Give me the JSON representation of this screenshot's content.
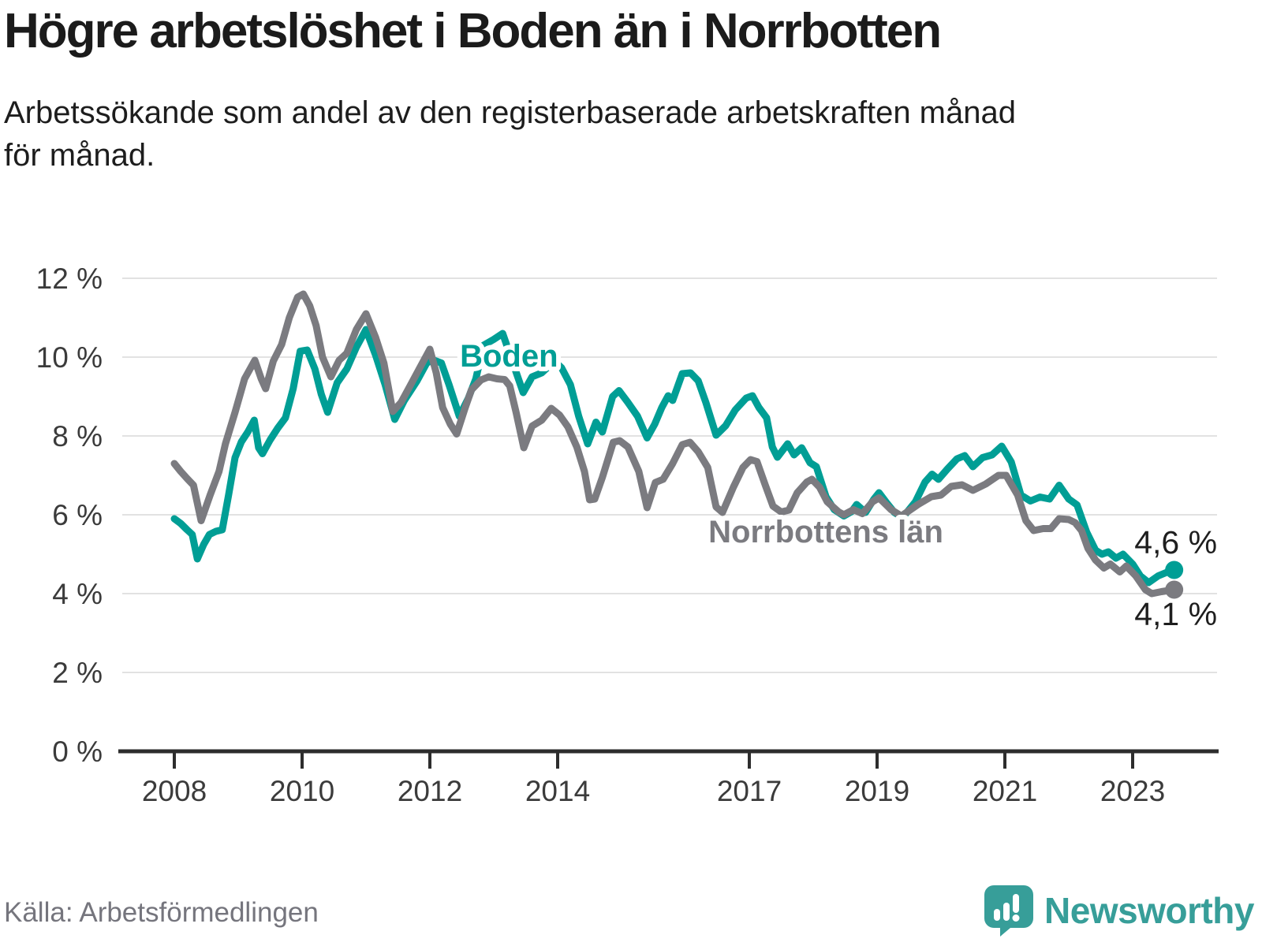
{
  "title": "Högre arbetslöshet i Boden än i Norrbotten",
  "subtitle_lines": [
    "Arbetssökande som andel av den registerbaserade arbetskraften månad",
    "för månad."
  ],
  "source": "Källa: Arbetsförmedlingen",
  "branding": {
    "name": "Newsworthy",
    "color": "#379e99"
  },
  "colors": {
    "grid": "#e2e2e2",
    "axis": "#2d2d2d",
    "tick_text": "#3b3b3b",
    "value_label_text": "#1e1e1e"
  },
  "chart_data": {
    "type": "line",
    "unit": "%",
    "x_axis": {
      "range": [
        2008.0,
        2023.65
      ],
      "ticks": [
        {
          "v": 2008,
          "label": "2008"
        },
        {
          "v": 2010,
          "label": "2010"
        },
        {
          "v": 2012,
          "label": "2012"
        },
        {
          "v": 2014,
          "label": "2014"
        },
        {
          "v": 2017,
          "label": "2017"
        },
        {
          "v": 2019,
          "label": "2019"
        },
        {
          "v": 2021,
          "label": "2021"
        },
        {
          "v": 2023,
          "label": "2023"
        }
      ]
    },
    "y_axis": {
      "range": [
        0,
        12
      ],
      "ticks": [
        {
          "v": 0,
          "label": "0 %"
        },
        {
          "v": 2,
          "label": "2 %"
        },
        {
          "v": 4,
          "label": "4 %"
        },
        {
          "v": 6,
          "label": "6 %"
        },
        {
          "v": 8,
          "label": "8 %"
        },
        {
          "v": 10,
          "label": "10 %"
        },
        {
          "v": 12,
          "label": "12 %"
        }
      ]
    },
    "series": [
      {
        "id": "boden",
        "name": "Boden",
        "color": "#009e95",
        "end_label": "4,6 %",
        "end_value": 4.6,
        "end_label_position": "above",
        "inline_label": {
          "x": 2012.47,
          "y": 9.76
        },
        "points": [
          [
            2008.0,
            5.9
          ],
          [
            2008.1,
            5.78
          ],
          [
            2008.2,
            5.62
          ],
          [
            2008.28,
            5.5
          ],
          [
            2008.36,
            4.88
          ],
          [
            2008.46,
            5.25
          ],
          [
            2008.55,
            5.5
          ],
          [
            2008.65,
            5.58
          ],
          [
            2008.75,
            5.62
          ],
          [
            2008.85,
            6.5
          ],
          [
            2008.95,
            7.45
          ],
          [
            2009.05,
            7.85
          ],
          [
            2009.15,
            8.1
          ],
          [
            2009.25,
            8.4
          ],
          [
            2009.32,
            7.7
          ],
          [
            2009.38,
            7.55
          ],
          [
            2009.5,
            7.9
          ],
          [
            2009.62,
            8.2
          ],
          [
            2009.74,
            8.46
          ],
          [
            2009.86,
            9.2
          ],
          [
            2009.97,
            10.15
          ],
          [
            2010.08,
            10.18
          ],
          [
            2010.2,
            9.7
          ],
          [
            2010.3,
            9.06
          ],
          [
            2010.4,
            8.6
          ],
          [
            2010.55,
            9.35
          ],
          [
            2010.7,
            9.7
          ],
          [
            2010.85,
            10.25
          ],
          [
            2011.0,
            10.7
          ],
          [
            2011.15,
            10.05
          ],
          [
            2011.3,
            9.3
          ],
          [
            2011.45,
            8.42
          ],
          [
            2011.6,
            8.9
          ],
          [
            2011.8,
            9.4
          ],
          [
            2011.95,
            9.85
          ],
          [
            2012.05,
            9.93
          ],
          [
            2012.18,
            9.85
          ],
          [
            2012.3,
            9.3
          ],
          [
            2012.46,
            8.5
          ],
          [
            2012.6,
            8.95
          ],
          [
            2012.72,
            9.45
          ],
          [
            2012.84,
            10.3
          ],
          [
            2013.0,
            10.45
          ],
          [
            2013.14,
            10.6
          ],
          [
            2013.3,
            9.85
          ],
          [
            2013.46,
            9.1
          ],
          [
            2013.6,
            9.5
          ],
          [
            2013.75,
            9.6
          ],
          [
            2013.95,
            9.9
          ],
          [
            2014.06,
            9.73
          ],
          [
            2014.2,
            9.3
          ],
          [
            2014.33,
            8.5
          ],
          [
            2014.47,
            7.8
          ],
          [
            2014.6,
            8.35
          ],
          [
            2014.7,
            8.1
          ],
          [
            2014.86,
            9.0
          ],
          [
            2014.96,
            9.15
          ],
          [
            2015.1,
            8.85
          ],
          [
            2015.25,
            8.5
          ],
          [
            2015.4,
            7.95
          ],
          [
            2015.52,
            8.3
          ],
          [
            2015.63,
            8.72
          ],
          [
            2015.73,
            9.02
          ],
          [
            2015.8,
            8.9
          ],
          [
            2015.95,
            9.58
          ],
          [
            2016.08,
            9.6
          ],
          [
            2016.2,
            9.4
          ],
          [
            2016.32,
            8.85
          ],
          [
            2016.48,
            8.02
          ],
          [
            2016.63,
            8.26
          ],
          [
            2016.78,
            8.66
          ],
          [
            2016.95,
            8.96
          ],
          [
            2017.05,
            9.02
          ],
          [
            2017.15,
            8.72
          ],
          [
            2017.27,
            8.46
          ],
          [
            2017.36,
            7.72
          ],
          [
            2017.44,
            7.46
          ],
          [
            2017.6,
            7.8
          ],
          [
            2017.7,
            7.52
          ],
          [
            2017.82,
            7.7
          ],
          [
            2017.95,
            7.32
          ],
          [
            2018.05,
            7.22
          ],
          [
            2018.2,
            6.46
          ],
          [
            2018.33,
            6.13
          ],
          [
            2018.48,
            5.97
          ],
          [
            2018.6,
            6.08
          ],
          [
            2018.68,
            6.26
          ],
          [
            2018.82,
            6.06
          ],
          [
            2018.95,
            6.4
          ],
          [
            2019.03,
            6.56
          ],
          [
            2019.15,
            6.3
          ],
          [
            2019.27,
            6.06
          ],
          [
            2019.4,
            5.93
          ],
          [
            2019.6,
            6.33
          ],
          [
            2019.75,
            6.83
          ],
          [
            2019.86,
            7.03
          ],
          [
            2019.96,
            6.9
          ],
          [
            2020.1,
            7.16
          ],
          [
            2020.25,
            7.42
          ],
          [
            2020.37,
            7.5
          ],
          [
            2020.5,
            7.22
          ],
          [
            2020.65,
            7.45
          ],
          [
            2020.8,
            7.52
          ],
          [
            2020.95,
            7.74
          ],
          [
            2021.1,
            7.34
          ],
          [
            2021.25,
            6.5
          ],
          [
            2021.4,
            6.35
          ],
          [
            2021.55,
            6.45
          ],
          [
            2021.7,
            6.4
          ],
          [
            2021.85,
            6.75
          ],
          [
            2022.0,
            6.4
          ],
          [
            2022.13,
            6.25
          ],
          [
            2022.28,
            5.56
          ],
          [
            2022.42,
            5.1
          ],
          [
            2022.52,
            5.0
          ],
          [
            2022.62,
            5.06
          ],
          [
            2022.74,
            4.9
          ],
          [
            2022.85,
            5.0
          ],
          [
            2023.0,
            4.75
          ],
          [
            2023.12,
            4.45
          ],
          [
            2023.25,
            4.28
          ],
          [
            2023.4,
            4.45
          ],
          [
            2023.55,
            4.55
          ],
          [
            2023.65,
            4.6
          ]
        ]
      },
      {
        "id": "norrbottens-lan",
        "name": "Norrbottens län",
        "color": "#7b7b80",
        "end_label": "4,1 %",
        "end_value": 4.1,
        "end_label_position": "below",
        "inline_label": {
          "x": 2016.36,
          "y": 5.3
        },
        "points": [
          [
            2008.0,
            7.3
          ],
          [
            2008.1,
            7.1
          ],
          [
            2008.2,
            6.92
          ],
          [
            2008.3,
            6.75
          ],
          [
            2008.42,
            5.85
          ],
          [
            2008.56,
            6.5
          ],
          [
            2008.7,
            7.1
          ],
          [
            2008.8,
            7.8
          ],
          [
            2008.95,
            8.6
          ],
          [
            2009.1,
            9.45
          ],
          [
            2009.26,
            9.92
          ],
          [
            2009.36,
            9.45
          ],
          [
            2009.43,
            9.2
          ],
          [
            2009.55,
            9.9
          ],
          [
            2009.68,
            10.32
          ],
          [
            2009.8,
            11.0
          ],
          [
            2009.93,
            11.52
          ],
          [
            2010.02,
            11.6
          ],
          [
            2010.12,
            11.3
          ],
          [
            2010.22,
            10.8
          ],
          [
            2010.32,
            10.0
          ],
          [
            2010.45,
            9.5
          ],
          [
            2010.58,
            9.92
          ],
          [
            2010.7,
            10.1
          ],
          [
            2010.85,
            10.7
          ],
          [
            2011.0,
            11.1
          ],
          [
            2011.15,
            10.5
          ],
          [
            2011.28,
            9.85
          ],
          [
            2011.42,
            8.62
          ],
          [
            2011.55,
            8.85
          ],
          [
            2011.7,
            9.3
          ],
          [
            2011.85,
            9.75
          ],
          [
            2012.0,
            10.2
          ],
          [
            2012.1,
            9.6
          ],
          [
            2012.2,
            8.72
          ],
          [
            2012.32,
            8.3
          ],
          [
            2012.42,
            8.05
          ],
          [
            2012.55,
            8.7
          ],
          [
            2012.65,
            9.17
          ],
          [
            2012.8,
            9.42
          ],
          [
            2012.92,
            9.5
          ],
          [
            2013.05,
            9.45
          ],
          [
            2013.17,
            9.43
          ],
          [
            2013.25,
            9.27
          ],
          [
            2013.35,
            8.6
          ],
          [
            2013.47,
            7.7
          ],
          [
            2013.6,
            8.25
          ],
          [
            2013.75,
            8.4
          ],
          [
            2013.9,
            8.7
          ],
          [
            2014.03,
            8.53
          ],
          [
            2014.16,
            8.23
          ],
          [
            2014.3,
            7.72
          ],
          [
            2014.42,
            7.1
          ],
          [
            2014.5,
            6.38
          ],
          [
            2014.58,
            6.4
          ],
          [
            2014.7,
            6.95
          ],
          [
            2014.87,
            7.84
          ],
          [
            2014.97,
            7.88
          ],
          [
            2015.1,
            7.72
          ],
          [
            2015.27,
            7.1
          ],
          [
            2015.4,
            6.18
          ],
          [
            2015.53,
            6.82
          ],
          [
            2015.65,
            6.9
          ],
          [
            2015.8,
            7.3
          ],
          [
            2015.95,
            7.78
          ],
          [
            2016.07,
            7.84
          ],
          [
            2016.2,
            7.6
          ],
          [
            2016.35,
            7.2
          ],
          [
            2016.48,
            6.2
          ],
          [
            2016.58,
            6.06
          ],
          [
            2016.75,
            6.7
          ],
          [
            2016.9,
            7.2
          ],
          [
            2017.02,
            7.4
          ],
          [
            2017.12,
            7.35
          ],
          [
            2017.25,
            6.75
          ],
          [
            2017.37,
            6.22
          ],
          [
            2017.5,
            6.07
          ],
          [
            2017.62,
            6.12
          ],
          [
            2017.75,
            6.56
          ],
          [
            2017.9,
            6.83
          ],
          [
            2017.98,
            6.9
          ],
          [
            2018.1,
            6.7
          ],
          [
            2018.22,
            6.33
          ],
          [
            2018.4,
            6.07
          ],
          [
            2018.48,
            6.0
          ],
          [
            2018.63,
            6.13
          ],
          [
            2018.77,
            6.03
          ],
          [
            2018.93,
            6.33
          ],
          [
            2019.03,
            6.43
          ],
          [
            2019.22,
            6.13
          ],
          [
            2019.38,
            5.97
          ],
          [
            2019.64,
            6.26
          ],
          [
            2019.85,
            6.46
          ],
          [
            2020.0,
            6.5
          ],
          [
            2020.16,
            6.72
          ],
          [
            2020.33,
            6.76
          ],
          [
            2020.5,
            6.62
          ],
          [
            2020.7,
            6.78
          ],
          [
            2020.9,
            7.0
          ],
          [
            2021.02,
            7.0
          ],
          [
            2021.2,
            6.5
          ],
          [
            2021.33,
            5.85
          ],
          [
            2021.45,
            5.6
          ],
          [
            2021.6,
            5.65
          ],
          [
            2021.72,
            5.65
          ],
          [
            2021.85,
            5.9
          ],
          [
            2022.0,
            5.88
          ],
          [
            2022.1,
            5.8
          ],
          [
            2022.2,
            5.6
          ],
          [
            2022.3,
            5.15
          ],
          [
            2022.42,
            4.85
          ],
          [
            2022.55,
            4.65
          ],
          [
            2022.65,
            4.75
          ],
          [
            2022.8,
            4.55
          ],
          [
            2022.9,
            4.7
          ],
          [
            2023.05,
            4.45
          ],
          [
            2023.2,
            4.1
          ],
          [
            2023.3,
            4.0
          ],
          [
            2023.45,
            4.05
          ],
          [
            2023.65,
            4.1
          ]
        ]
      }
    ],
    "legend_position": "inline-labels",
    "grid": true
  }
}
